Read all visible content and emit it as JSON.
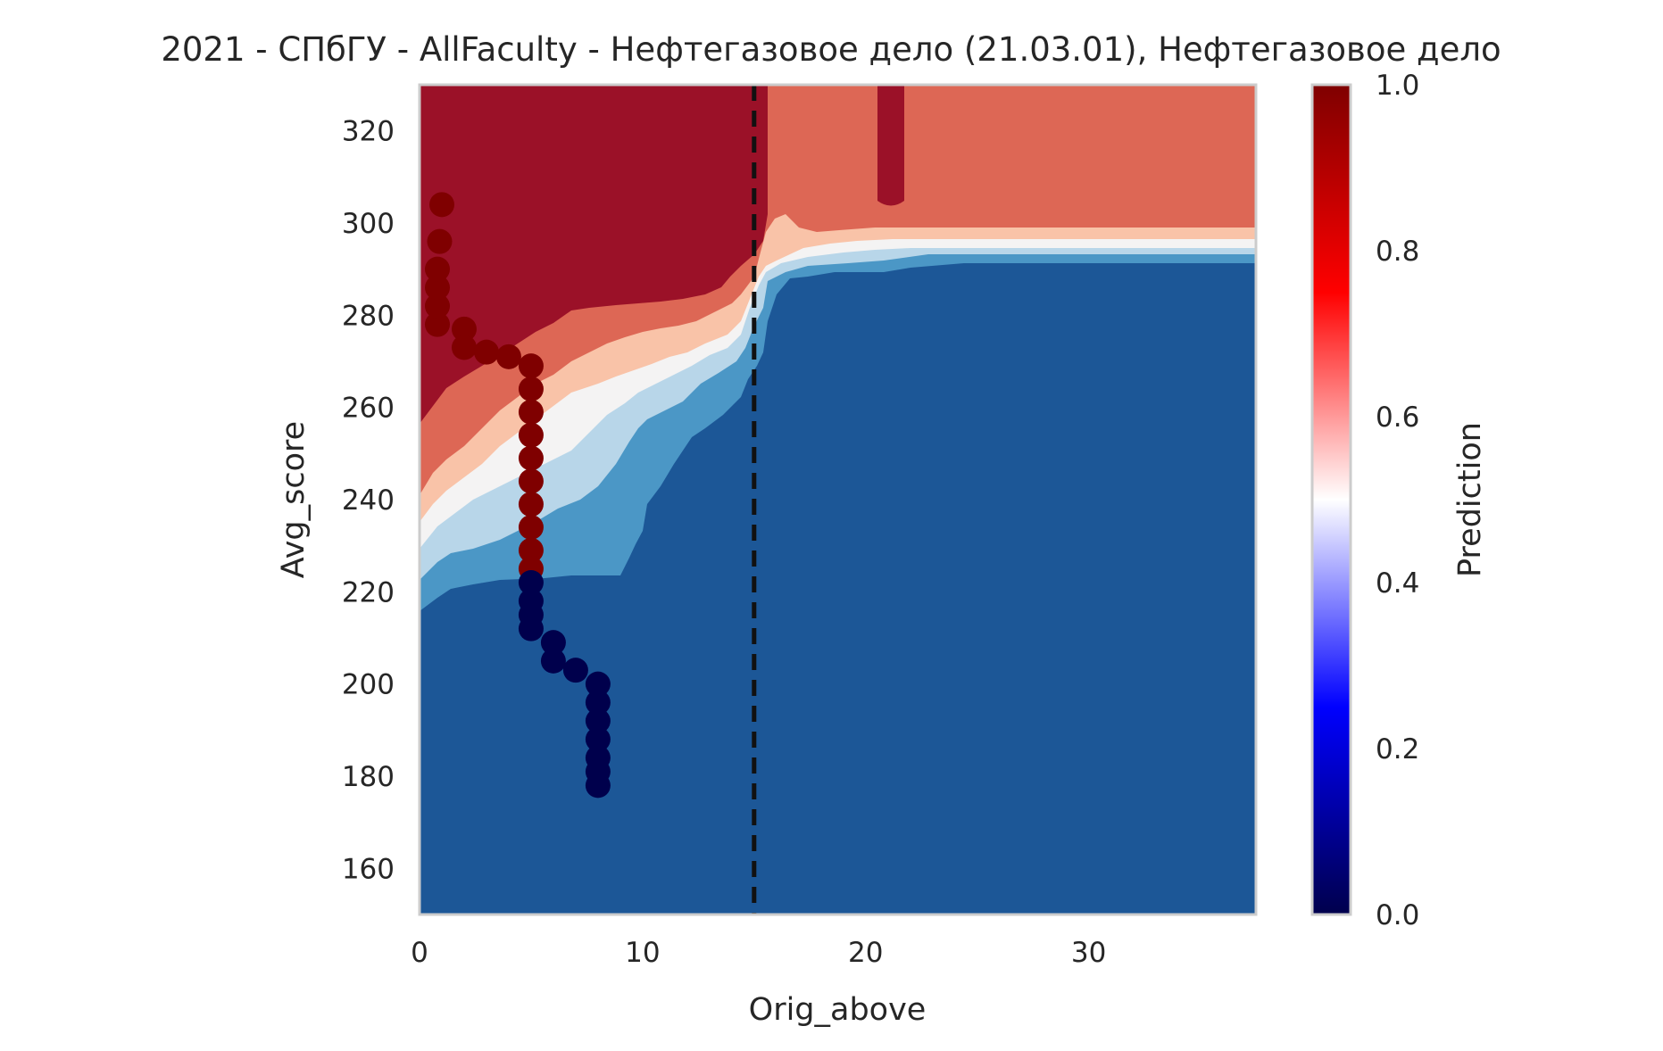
{
  "chart_data": {
    "type": "heatmap",
    "title": "2021 - СПбГУ - AllFaculty - Нефтегазовое дело (21.03.01), Нефтегазовое дело",
    "xlabel": "Orig_above",
    "ylabel": "Avg_score",
    "xlim": [
      0,
      37.5
    ],
    "ylim": [
      150,
      330
    ],
    "xticks": [
      0,
      10,
      20,
      30
    ],
    "yticks": [
      160,
      180,
      200,
      220,
      240,
      260,
      280,
      300,
      320
    ],
    "grid": false,
    "colorbar": {
      "label": "Prediction",
      "range": [
        0,
        1
      ],
      "ticks": [
        "0.0",
        "0.2",
        "0.4",
        "0.6",
        "0.8",
        "1.0"
      ],
      "colormap": "seismic",
      "colors": [
        "#00004c",
        "#0000ff",
        "#ffffff",
        "#ff0000",
        "#7f0000"
      ]
    },
    "contour_levels": [
      {
        "range": [
          0.0,
          0.125
        ],
        "color": "#1c5797"
      },
      {
        "range": [
          0.125,
          0.25
        ],
        "color": "#4b97c6"
      },
      {
        "range": [
          0.25,
          0.375
        ],
        "color": "#b8d6e9"
      },
      {
        "range": [
          0.375,
          0.5
        ],
        "color": "#f4f3f3"
      },
      {
        "range": [
          0.5,
          0.625
        ],
        "color": "#f9c3a8"
      },
      {
        "range": [
          0.625,
          0.75
        ],
        "color": "#dd6755"
      },
      {
        "range": [
          0.75,
          1.0
        ],
        "color": "#9b1128"
      }
    ],
    "threshold_line": {
      "x": 15,
      "style": "dashed",
      "color": "#111111"
    },
    "series": [
      {
        "values": [
          {
            "x": 0.8,
            "y": 278,
            "p": 1
          },
          {
            "x": 0.8,
            "y": 282,
            "p": 1
          },
          {
            "x": 0.8,
            "y": 286,
            "p": 1
          },
          {
            "x": 0.8,
            "y": 290,
            "p": 1
          },
          {
            "x": 0.9,
            "y": 296,
            "p": 1
          },
          {
            "x": 1.0,
            "y": 304,
            "p": 1
          },
          {
            "x": 2.0,
            "y": 277,
            "p": 1
          },
          {
            "x": 2.0,
            "y": 273,
            "p": 1
          },
          {
            "x": 3.0,
            "y": 272,
            "p": 1
          },
          {
            "x": 4.0,
            "y": 271,
            "p": 1
          },
          {
            "x": 5.0,
            "y": 269,
            "p": 1
          },
          {
            "x": 5.0,
            "y": 264,
            "p": 1
          },
          {
            "x": 5.0,
            "y": 259,
            "p": 1
          },
          {
            "x": 5.0,
            "y": 254,
            "p": 1
          },
          {
            "x": 5.0,
            "y": 249,
            "p": 1
          },
          {
            "x": 5.0,
            "y": 244,
            "p": 1
          },
          {
            "x": 5.0,
            "y": 239,
            "p": 1
          },
          {
            "x": 5.0,
            "y": 234,
            "p": 1
          },
          {
            "x": 5.0,
            "y": 229,
            "p": 1
          },
          {
            "x": 5.0,
            "y": 225,
            "p": 1
          },
          {
            "x": 5.0,
            "y": 222,
            "p": 0
          },
          {
            "x": 5.0,
            "y": 218,
            "p": 0
          },
          {
            "x": 5.0,
            "y": 215,
            "p": 0
          },
          {
            "x": 5.0,
            "y": 212,
            "p": 0
          },
          {
            "x": 6.0,
            "y": 209,
            "p": 0
          },
          {
            "x": 6.0,
            "y": 205,
            "p": 0
          },
          {
            "x": 7.0,
            "y": 203,
            "p": 0
          },
          {
            "x": 8.0,
            "y": 200,
            "p": 0
          },
          {
            "x": 8.0,
            "y": 196,
            "p": 0
          },
          {
            "x": 8.0,
            "y": 192,
            "p": 0
          },
          {
            "x": 8.0,
            "y": 188,
            "p": 0
          },
          {
            "x": 8.0,
            "y": 184,
            "p": 0
          },
          {
            "x": 8.0,
            "y": 181,
            "p": 0
          },
          {
            "x": 8.0,
            "y": 178,
            "p": 0
          }
        ]
      }
    ],
    "vertical_bar": {
      "x": [
        20.5,
        21.5
      ],
      "y": [
        304,
        330
      ],
      "color": "#9b1128"
    }
  }
}
